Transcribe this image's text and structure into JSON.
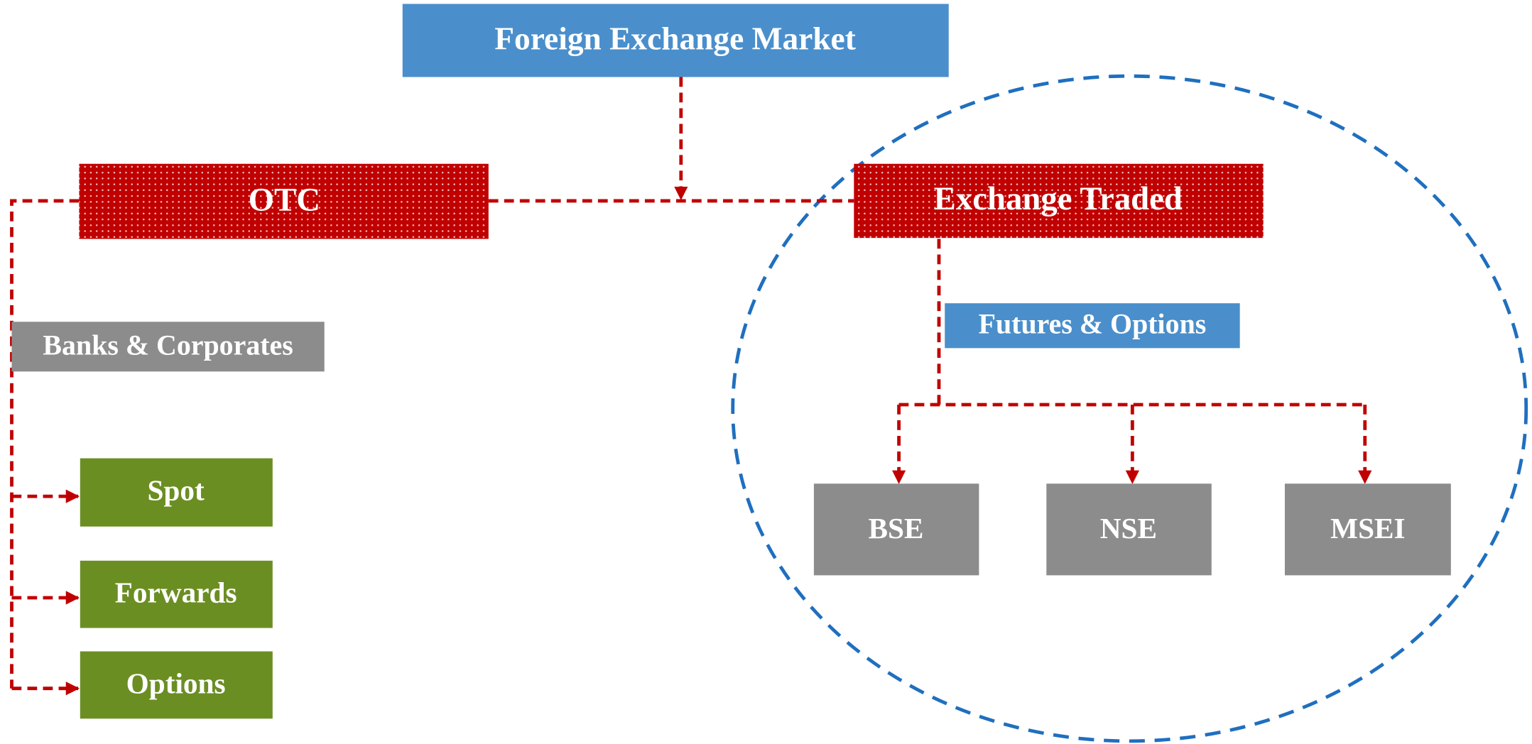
{
  "nodes": [
    {
      "id": "root",
      "label": "Foreign Exchange Market"
    },
    {
      "id": "otc",
      "label": "OTC"
    },
    {
      "id": "exchange",
      "label": "Exchange Traded"
    },
    {
      "id": "banks",
      "label": "Banks & Corporates"
    },
    {
      "id": "spot",
      "label": "Spot"
    },
    {
      "id": "forwards",
      "label": "Forwards"
    },
    {
      "id": "options",
      "label": "Options"
    },
    {
      "id": "fo",
      "label": "Futures & Options"
    },
    {
      "id": "bse",
      "label": "BSE"
    },
    {
      "id": "nse",
      "label": "NSE"
    },
    {
      "id": "msei",
      "label": "MSEI"
    }
  ]
}
